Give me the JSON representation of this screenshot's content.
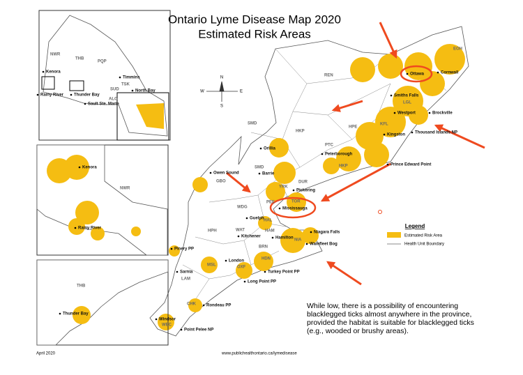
{
  "title": [
    "Ontario Lyme Disease Map 2020",
    "Estimated Risk Areas"
  ],
  "overview_inset": {
    "labels": [
      "NWR",
      "THB",
      "PQP",
      "Kenora",
      "Rainy River",
      "Thunder Bay",
      "Timmins",
      "SUD",
      "TSK",
      "ALG",
      "North Bay",
      "Sault Ste. Marie"
    ]
  },
  "kenora_inset": {
    "labels": [
      "Kenora",
      "NWR",
      "Rainy River"
    ]
  },
  "thunder_bay_inset": {
    "labels": [
      "THB",
      "Thunder Bay"
    ]
  },
  "compass": [
    "N",
    "S",
    "W",
    "E"
  ],
  "main_map": {
    "labels": [
      "REN",
      "EOH",
      "Ottawa",
      "Cornwall",
      "Smiths Falls",
      "LGL",
      "Westport",
      "Brockville",
      "KFL",
      "Kingston",
      "Thousand Islands NP",
      "Prince Edward Point",
      "HPE",
      "PTC",
      "Peterborough",
      "HKP",
      "HKP",
      "SMD",
      "Orillia",
      "SMD",
      "Barrie",
      "Owen Sound",
      "GBO",
      "YRK",
      "DUR",
      "Pickering",
      "PEE",
      "TOR",
      "Mississauga",
      "WDG",
      "Guelph",
      "HAL",
      "WAT",
      "Kitchener",
      "HAM",
      "Hamilton",
      "HPH",
      "Niagara Falls",
      "NIA",
      "Wainfleet Bog",
      "BRN",
      "Pinery PP",
      "London",
      "MSL",
      "OXF",
      "HDN",
      "Sarnia",
      "LAM",
      "Turkey Point PP",
      "Long Point PP",
      "CHK",
      "Rondeau PP",
      "Windsor",
      "WEC",
      "Point Pelee NP"
    ]
  },
  "legend": {
    "title": "Legend",
    "items": [
      "Estimated Risk Area",
      "Health Unit Boundary"
    ]
  },
  "note": [
    "While low, there is a possibility of encountering",
    "blacklegged ticks almost anywhere in the province,",
    "provided the habitat is suitable for blacklegged ticks",
    "(e.g., wooded or brushy areas)."
  ],
  "footer": {
    "date": "April 2020",
    "url": "www.publichealthontario.ca/lymedisease"
  }
}
